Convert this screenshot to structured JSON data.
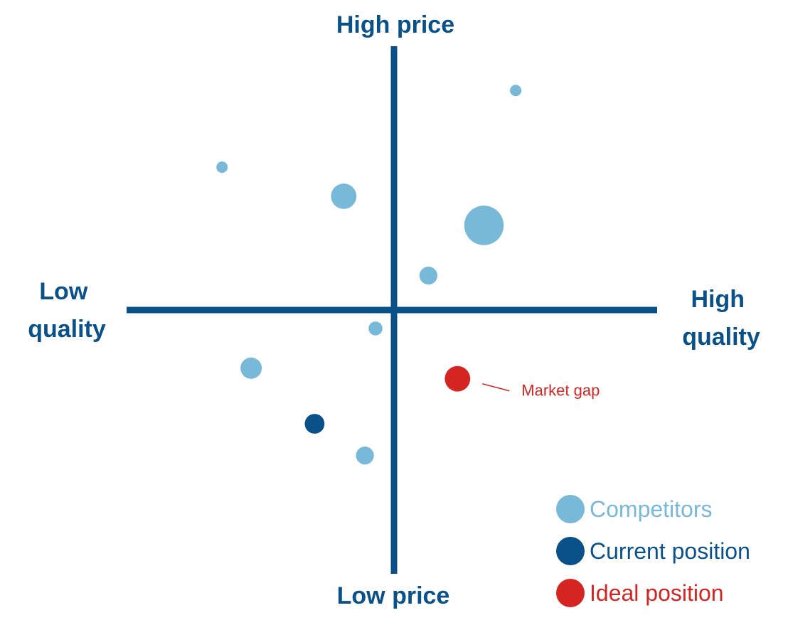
{
  "chart_data": {
    "type": "scatter",
    "title": "",
    "axes": {
      "x_min_label": [
        "Low",
        "quality"
      ],
      "x_max_label": [
        "High",
        "quality"
      ],
      "y_max_label": "High price",
      "y_min_label": "Low price",
      "xlim": [
        -10,
        10
      ],
      "ylim": [
        -10,
        10
      ],
      "grid": false,
      "color": "#0b5189"
    },
    "series": [
      {
        "name": "Competitors",
        "color": "#78b8d8",
        "points": [
          {
            "x": 4.6,
            "y": 8.3,
            "size": 1
          },
          {
            "x": -6.5,
            "y": 5.4,
            "size": 1
          },
          {
            "x": -1.9,
            "y": 4.3,
            "size": 5
          },
          {
            "x": 3.4,
            "y": 3.2,
            "size": 12
          },
          {
            "x": 1.3,
            "y": 1.3,
            "size": 2.5
          },
          {
            "x": -0.7,
            "y": -0.7,
            "size": 1.5
          },
          {
            "x": -5.4,
            "y": -2.2,
            "size": 3.5
          },
          {
            "x": -1.1,
            "y": -5.5,
            "size": 2.5
          }
        ]
      },
      {
        "name": "Current position",
        "color": "#0b5189",
        "points": [
          {
            "x": -3.0,
            "y": -4.3,
            "size": 3
          }
        ]
      },
      {
        "name": "Ideal position",
        "color": "#d42523",
        "points": [
          {
            "x": 2.4,
            "y": -2.6,
            "size": 5
          }
        ]
      }
    ],
    "annotations": [
      {
        "text": "Market gap",
        "x": 2.4,
        "y": -2.6,
        "color": "#d42523"
      }
    ],
    "legend": {
      "placement": "bottom-right"
    }
  }
}
